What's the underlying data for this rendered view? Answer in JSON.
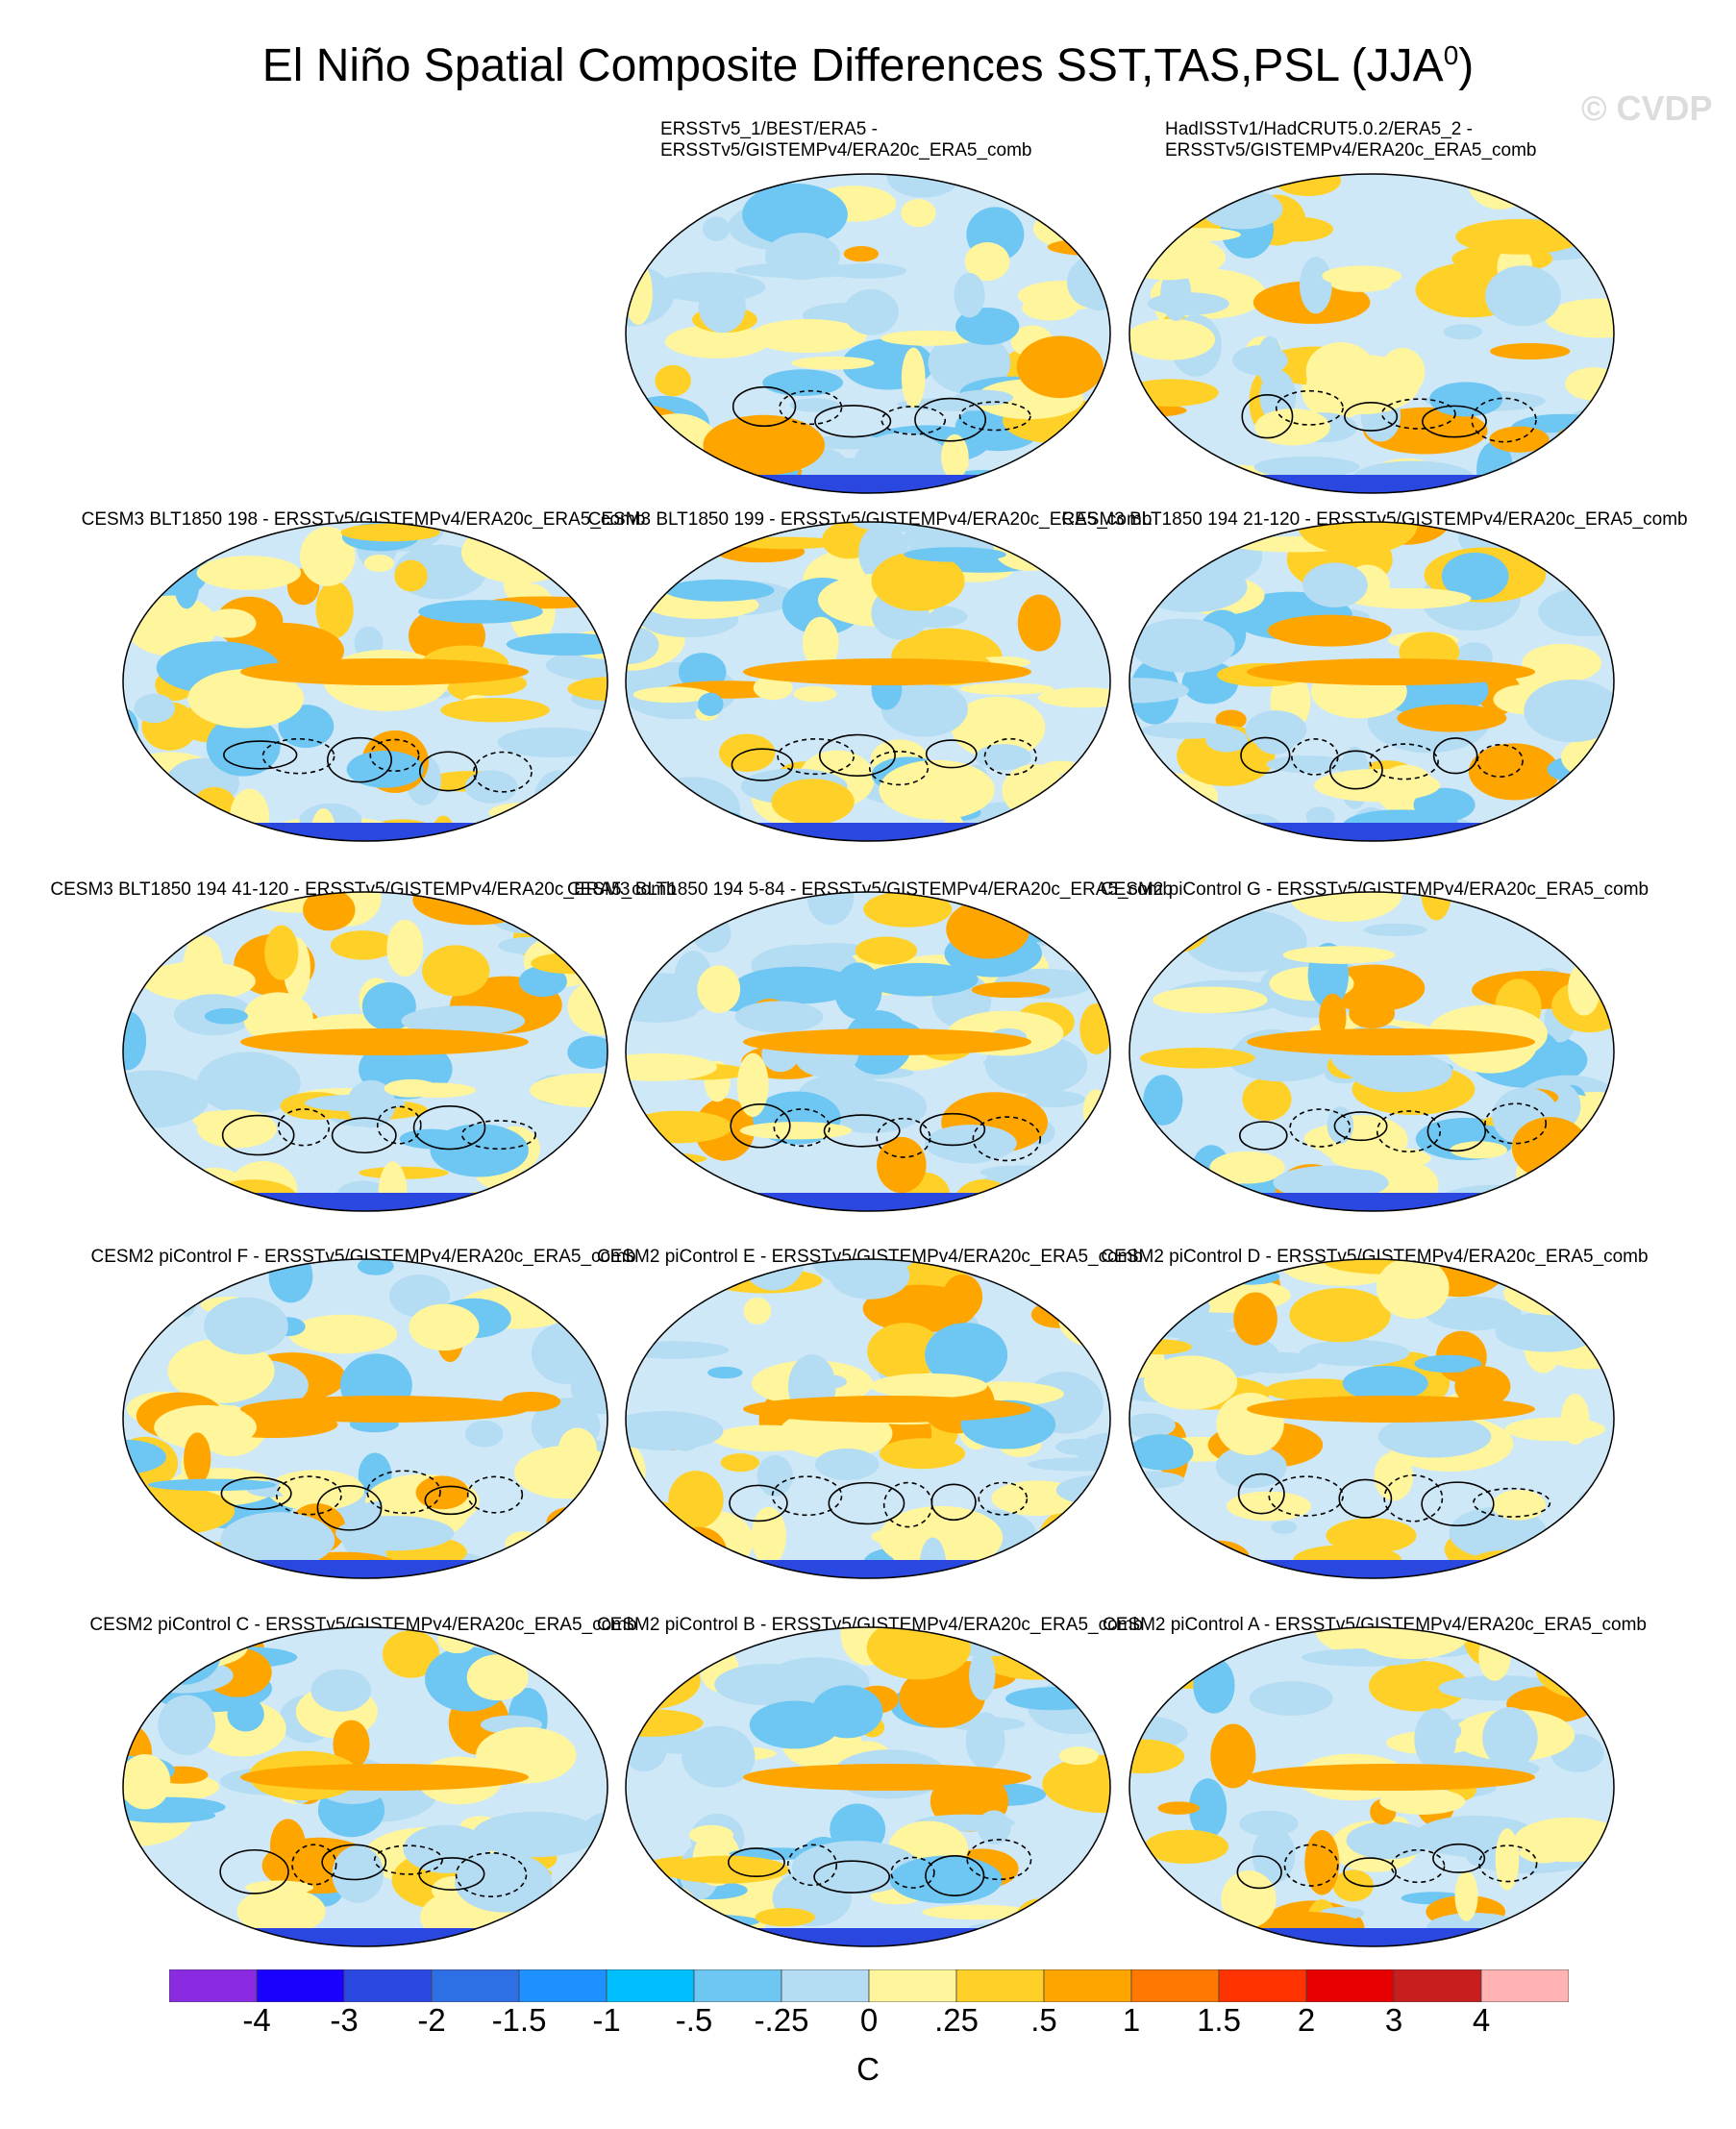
{
  "title": "El Niño Spatial Composite Differences SST,TAS,PSL (JJA",
  "title_superscript": "0",
  "title_close": ")",
  "watermark": "© CVDP",
  "top_panels": [
    {
      "line1": "ERSSTv5_1/BEST/ERA5 -",
      "line2": "ERSSTv5/GISTEMPv4/ERA20c_ERA5_comb"
    },
    {
      "line1": "HadISSTv1/HadCRUT5.0.2/ERA5_2 -",
      "line2": "ERSSTv5/GISTEMPv4/ERA20c_ERA5_comb"
    }
  ],
  "panels": [
    "CESM3 BLT1850 198 - ERSSTv5/GISTEMPv4/ERA20c_ERA5_comb",
    "CESM3 BLT1850 199 - ERSSTv5/GISTEMPv4/ERA20c_ERA5_comb",
    "CESM3 BLT1850 194 21-120 - ERSSTv5/GISTEMPv4/ERA20c_ERA5_comb",
    "CESM3 BLT1850 194 41-120 - ERSSTv5/GISTEMPv4/ERA20c_ERA5_comb",
    "CESM3 BLT1850 194 5-84 - ERSSTv5/GISTEMPv4/ERA20c_ERA5_comb",
    "CESM2 piControl G - ERSSTv5/GISTEMPv4/ERA20c_ERA5_comb",
    "CESM2 piControl F - ERSSTv5/GISTEMPv4/ERA20c_ERA5_comb",
    "CESM2 piControl E - ERSSTv5/GISTEMPv4/ERA20c_ERA5_comb",
    "CESM2 piControl D - ERSSTv5/GISTEMPv4/ERA20c_ERA5_comb",
    "CESM2 piControl C - ERSSTv5/GISTEMPv4/ERA20c_ERA5_comb",
    "CESM2 piControl B - ERSSTv5/GISTEMPv4/ERA20c_ERA5_comb",
    "CESM2 piControl A - ERSSTv5/GISTEMPv4/ERA20c_ERA5_comb"
  ],
  "colorbar": {
    "colors": [
      "#8a2be2",
      "#1a00ff",
      "#2a48e0",
      "#2f6fe6",
      "#1e90ff",
      "#00bfff",
      "#6ec6f2",
      "#b4dcf2",
      "#fff59d",
      "#ffd027",
      "#ffa500",
      "#ff7800",
      "#ff3300",
      "#e60000",
      "#c81e1e",
      "#ffb3b3"
    ],
    "labels": [
      "-4",
      "-3",
      "-2",
      "-1.5",
      "-1",
      "-.5",
      "-.25",
      "0",
      ".25",
      ".5",
      "1",
      "1.5",
      "2",
      "3",
      "4"
    ],
    "units": "C"
  }
}
